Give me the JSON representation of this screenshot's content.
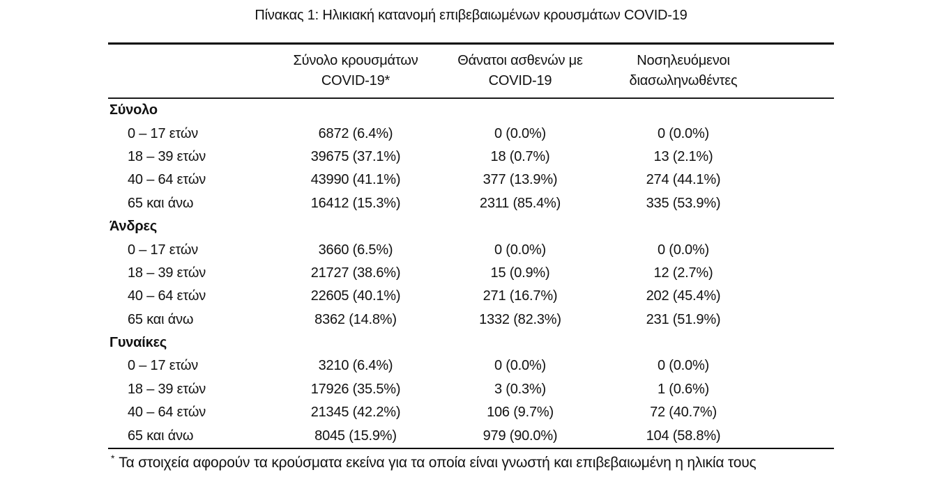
{
  "title": "Πίνακας 1: Ηλικιακή κατανομή επιβεβαιωμένων κρουσμάτων COVID-19",
  "table": {
    "columns": [
      {
        "line1": "Σύνολο κρουσμάτων",
        "line2": "COVID-19*"
      },
      {
        "line1": "Θάνατοι ασθενών με",
        "line2": "COVID-19"
      },
      {
        "line1": "Νοσηλευόμενοι",
        "line2": "διασωληνωθέντες"
      }
    ],
    "groups": [
      {
        "label": "Σύνολο",
        "rows": [
          {
            "label": "0 – 17 ετών",
            "cases": "6872 (6.4%)",
            "deaths": "0 (0.0%)",
            "intubated": "0 (0.0%)"
          },
          {
            "label": "18 – 39 ετών",
            "cases": "39675 (37.1%)",
            "deaths": "18 (0.7%)",
            "intubated": "13 (2.1%)"
          },
          {
            "label": "40 – 64 ετών",
            "cases": "43990 (41.1%)",
            "deaths": "377 (13.9%)",
            "intubated": "274 (44.1%)"
          },
          {
            "label": "65 και άνω",
            "cases": "16412 (15.3%)",
            "deaths": "2311 (85.4%)",
            "intubated": "335 (53.9%)"
          }
        ]
      },
      {
        "label": "Άνδρες",
        "rows": [
          {
            "label": "0 – 17 ετών",
            "cases": "3660 (6.5%)",
            "deaths": "0 (0.0%)",
            "intubated": "0 (0.0%)"
          },
          {
            "label": "18 – 39 ετών",
            "cases": "21727 (38.6%)",
            "deaths": "15 (0.9%)",
            "intubated": "12 (2.7%)"
          },
          {
            "label": "40 – 64 ετών",
            "cases": "22605 (40.1%)",
            "deaths": "271 (16.7%)",
            "intubated": "202 (45.4%)"
          },
          {
            "label": "65 και άνω",
            "cases": "8362 (14.8%)",
            "deaths": "1332 (82.3%)",
            "intubated": "231 (51.9%)"
          }
        ]
      },
      {
        "label": "Γυναίκες",
        "rows": [
          {
            "label": "0 – 17 ετών",
            "cases": "3210 (6.4%)",
            "deaths": "0 (0.0%)",
            "intubated": "0 (0.0%)"
          },
          {
            "label": "18 – 39 ετών",
            "cases": "17926 (35.5%)",
            "deaths": "3 (0.3%)",
            "intubated": "1 (0.6%)"
          },
          {
            "label": "40 – 64 ετών",
            "cases": "21345 (42.2%)",
            "deaths": "106 (9.7%)",
            "intubated": "72 (40.7%)"
          },
          {
            "label": "65 και άνω",
            "cases": "8045 (15.9%)",
            "deaths": "979 (90.0%)",
            "intubated": "104 (58.8%)"
          }
        ]
      }
    ],
    "footnote_marker": "*",
    "footnote": "Τα στοιχεία αφορούν τα κρούσματα εκείνα για τα οποία είναι γνωστή και επιβεβαιωμένη η ηλικία τους"
  }
}
